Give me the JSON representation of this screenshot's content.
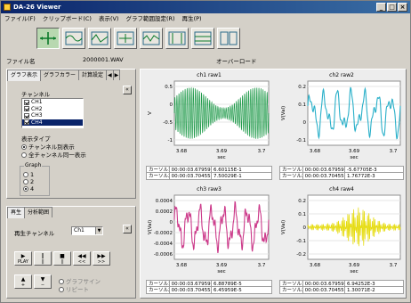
{
  "window": {
    "title": "DA-26 Viewer",
    "controls": [
      "_",
      "□",
      "×"
    ]
  },
  "menu": [
    "ファイル(F)",
    "クリップボード(C)",
    "表示(V)",
    "グラフ範囲設定(R)",
    "再生(P)"
  ],
  "toolbar": {
    "count": 8,
    "active_index": 0
  },
  "file": {
    "label": "ファイル名",
    "value": "2000001.WAV",
    "status": "オーバーロード"
  },
  "left_panel": {
    "tabs": [
      "グラフ表示",
      "グラフカラー",
      "計算設定"
    ],
    "nav": [
      "◀",
      "▶"
    ],
    "channel_label": "チャンネル",
    "channels": [
      {
        "label": "CH1",
        "checked": true,
        "selected": false
      },
      {
        "label": "CH2",
        "checked": true,
        "selected": false
      },
      {
        "label": "CH3",
        "checked": true,
        "selected": false
      },
      {
        "label": "CH4",
        "checked": true,
        "selected": true
      }
    ],
    "display_type_label": "表示タイプ",
    "display_types": [
      {
        "label": "チャンネル別表示",
        "selected": true
      },
      {
        "label": "全チャンネル同一表示",
        "selected": false
      }
    ],
    "graph_group": "Graph",
    "graph_options": [
      {
        "label": "1",
        "selected": false
      },
      {
        "label": "2",
        "selected": false
      },
      {
        "label": "4",
        "selected": true
      }
    ]
  },
  "play_panel": {
    "tabs": [
      "再生",
      "分析範囲"
    ],
    "channel_label": "再生チャンネル",
    "channel_value": "Ch1",
    "buttons": [
      {
        "glyph": "▶",
        "label": "PLAY"
      },
      {
        "glyph": "‖",
        "label": "||"
      },
      {
        "glyph": "■",
        "label": "||"
      },
      {
        "glyph": "◀◀",
        "label": "<<"
      },
      {
        "glyph": "▶▶",
        "label": ">>"
      }
    ],
    "extra_buttons": [
      {
        "glyph": "▲",
        "label": "+"
      },
      {
        "glyph": "▼",
        "label": "−"
      }
    ],
    "repeat_options": [
      "グラフサイン",
      "リピート"
    ]
  },
  "plots": [
    {
      "title": "ch1 raw1",
      "ylabel": "V",
      "xlabel": "sec",
      "yticks": [
        "0.5",
        "0",
        "-0.5",
        "-1"
      ],
      "xticks": [
        "3.68",
        "3.69",
        "3.7"
      ],
      "color": "#1f9a4a",
      "rows": [
        [
          "カーソル1",
          "00:00:03.67959",
          "6.60115E-1"
        ],
        [
          "カーソル2",
          "00:00:03.70455",
          "7.50029E-1"
        ]
      ]
    },
    {
      "title": "ch2 raw2",
      "ylabel": "V(Val)",
      "xlabel": "sec",
      "yticks": [
        "0.2",
        "0.1",
        "0",
        "-0.1"
      ],
      "xticks": [
        "3.68",
        "3.69",
        "3.7"
      ],
      "color": "#2ab0c9",
      "rows": [
        [
          "カーソル1",
          "00:00:03.67959",
          "-5.67705E-3"
        ],
        [
          "カーソル2",
          "00:00:03.70455",
          "1.76772E-3"
        ]
      ]
    },
    {
      "title": "ch3 raw3",
      "ylabel": "V(Val)",
      "xlabel": "sec",
      "yticks": [
        "0.0004",
        "0.0002",
        "0",
        "-0.0002",
        "-0.0004",
        "-0.0006"
      ],
      "xticks": [
        "3.68",
        "3.69",
        "3.7"
      ],
      "color": "#cc3a8a",
      "rows": [
        [
          "カーソル1",
          "00:00:03.67959",
          "6.88789E-5"
        ],
        [
          "カーソル2",
          "00:00:03.70455",
          "6.45959E-5"
        ]
      ]
    },
    {
      "title": "ch4 raw4",
      "ylabel": "V(Val)",
      "xlabel": "sec",
      "yticks": [
        "0.2",
        "0.1",
        "0",
        "-0.1",
        "-0.2"
      ],
      "xticks": [
        "3.68",
        "3.69",
        "3.7"
      ],
      "color": "#e6dc10",
      "rows": [
        [
          "カーソル1",
          "00:00:03.67959",
          "6.94252E-3"
        ],
        [
          "カーソル2",
          "00:00:03.70455",
          "1.30071E-2"
        ]
      ]
    }
  ]
}
